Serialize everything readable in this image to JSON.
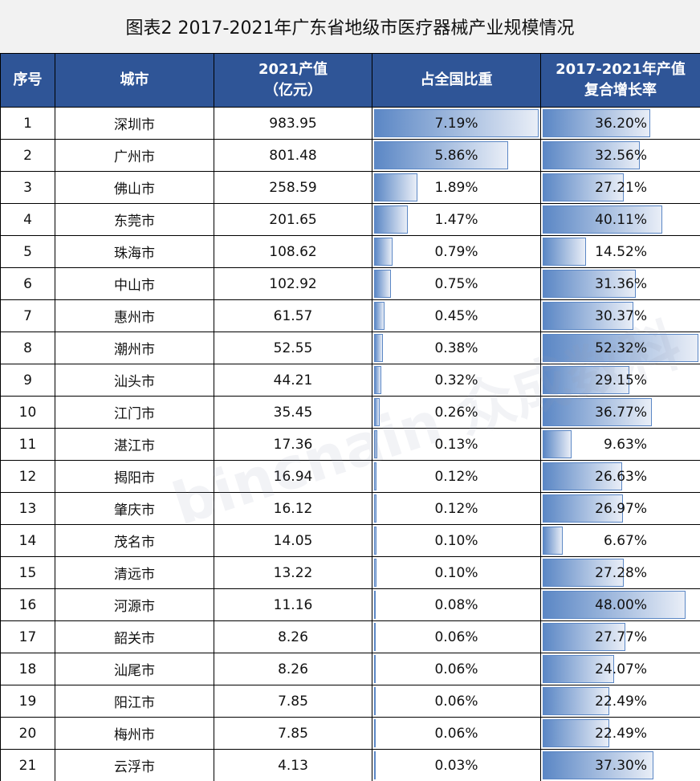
{
  "title": "图表2 2017-2021年广东省地级市医疗器械产业规模情况",
  "headers": {
    "index": "序号",
    "city": "城市",
    "value_l1": "2021产值",
    "value_l2": "（亿元）",
    "share": "占全国比重",
    "cagr_l1": "2017-2021年产值",
    "cagr_l2": "复合增长率"
  },
  "watermark": "bincnain 众成数科",
  "colors": {
    "header_bg": "#2F5597",
    "bar": "#5B87C5"
  },
  "rows": [
    {
      "i": "1",
      "city": "深圳市",
      "value": "983.95",
      "share": 7.19,
      "share_label": "7.19%",
      "cagr": 36.2,
      "cagr_label": "36.20%"
    },
    {
      "i": "2",
      "city": "广州市",
      "value": "801.48",
      "share": 5.86,
      "share_label": "5.86%",
      "cagr": 32.56,
      "cagr_label": "32.56%"
    },
    {
      "i": "3",
      "city": "佛山市",
      "value": "258.59",
      "share": 1.89,
      "share_label": "1.89%",
      "cagr": 27.21,
      "cagr_label": "27.21%"
    },
    {
      "i": "4",
      "city": "东莞市",
      "value": "201.65",
      "share": 1.47,
      "share_label": "1.47%",
      "cagr": 40.11,
      "cagr_label": "40.11%"
    },
    {
      "i": "5",
      "city": "珠海市",
      "value": "108.62",
      "share": 0.79,
      "share_label": "0.79%",
      "cagr": 14.52,
      "cagr_label": "14.52%"
    },
    {
      "i": "6",
      "city": "中山市",
      "value": "102.92",
      "share": 0.75,
      "share_label": "0.75%",
      "cagr": 31.36,
      "cagr_label": "31.36%"
    },
    {
      "i": "7",
      "city": "惠州市",
      "value": "61.57",
      "share": 0.45,
      "share_label": "0.45%",
      "cagr": 30.37,
      "cagr_label": "30.37%"
    },
    {
      "i": "8",
      "city": "潮州市",
      "value": "52.55",
      "share": 0.38,
      "share_label": "0.38%",
      "cagr": 52.32,
      "cagr_label": "52.32%"
    },
    {
      "i": "9",
      "city": "汕头市",
      "value": "44.21",
      "share": 0.32,
      "share_label": "0.32%",
      "cagr": 29.15,
      "cagr_label": "29.15%"
    },
    {
      "i": "10",
      "city": "江门市",
      "value": "35.45",
      "share": 0.26,
      "share_label": "0.26%",
      "cagr": 36.77,
      "cagr_label": "36.77%"
    },
    {
      "i": "11",
      "city": "湛江市",
      "value": "17.36",
      "share": 0.13,
      "share_label": "0.13%",
      "cagr": 9.63,
      "cagr_label": "9.63%"
    },
    {
      "i": "12",
      "city": "揭阳市",
      "value": "16.94",
      "share": 0.12,
      "share_label": "0.12%",
      "cagr": 26.63,
      "cagr_label": "26.63%"
    },
    {
      "i": "13",
      "city": "肇庆市",
      "value": "16.12",
      "share": 0.12,
      "share_label": "0.12%",
      "cagr": 26.97,
      "cagr_label": "26.97%"
    },
    {
      "i": "14",
      "city": "茂名市",
      "value": "14.05",
      "share": 0.1,
      "share_label": "0.10%",
      "cagr": 6.67,
      "cagr_label": "6.67%"
    },
    {
      "i": "15",
      "city": "清远市",
      "value": "13.22",
      "share": 0.1,
      "share_label": "0.10%",
      "cagr": 27.28,
      "cagr_label": "27.28%"
    },
    {
      "i": "16",
      "city": "河源市",
      "value": "11.16",
      "share": 0.08,
      "share_label": "0.08%",
      "cagr": 48.0,
      "cagr_label": "48.00%"
    },
    {
      "i": "17",
      "city": "韶关市",
      "value": "8.26",
      "share": 0.06,
      "share_label": "0.06%",
      "cagr": 27.77,
      "cagr_label": "27.77%"
    },
    {
      "i": "18",
      "city": "汕尾市",
      "value": "8.26",
      "share": 0.06,
      "share_label": "0.06%",
      "cagr": 24.07,
      "cagr_label": "24.07%"
    },
    {
      "i": "19",
      "city": "阳江市",
      "value": "7.85",
      "share": 0.06,
      "share_label": "0.06%",
      "cagr": 22.49,
      "cagr_label": "22.49%"
    },
    {
      "i": "20",
      "city": "梅州市",
      "value": "7.85",
      "share": 0.06,
      "share_label": "0.06%",
      "cagr": 22.49,
      "cagr_label": "22.49%"
    },
    {
      "i": "21",
      "city": "云浮市",
      "value": "4.13",
      "share": 0.03,
      "share_label": "0.03%",
      "cagr": 37.3,
      "cagr_label": "37.30%"
    }
  ]
}
